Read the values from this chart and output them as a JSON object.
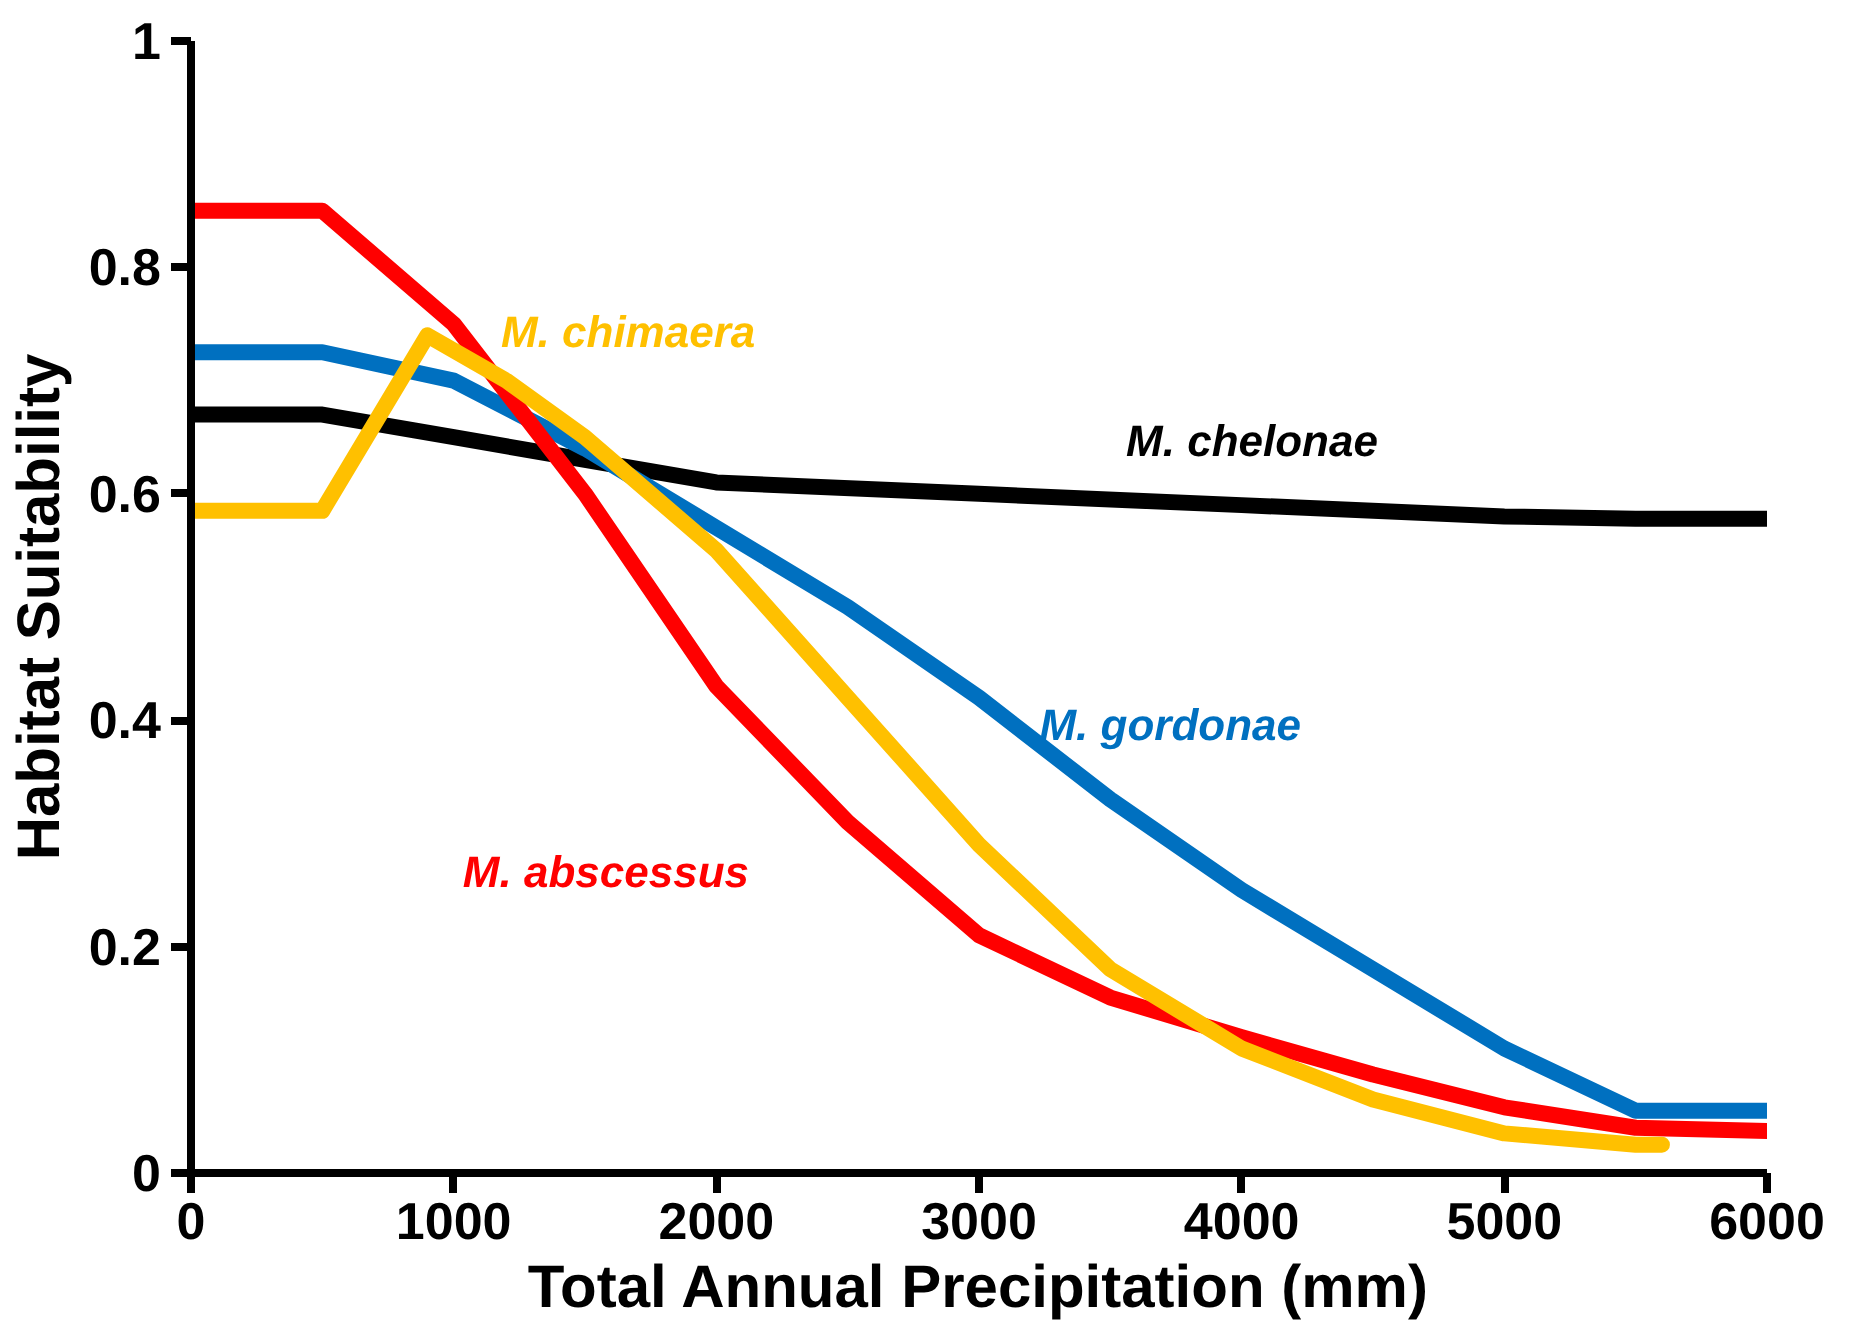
{
  "chart_data": {
    "type": "line",
    "xlabel": "Total Annual Precipitation (mm)",
    "ylabel": "Habitat Suitability",
    "xlim": [
      0,
      6000
    ],
    "ylim": [
      0,
      1
    ],
    "xticks": [
      0,
      1000,
      2000,
      3000,
      4000,
      5000,
      6000
    ],
    "yticks": [
      0,
      0.2,
      0.4,
      0.6,
      0.8,
      1
    ],
    "grid": false,
    "legend": false,
    "marker": "none",
    "line_style": "solid",
    "series": [
      {
        "name": "M. chelonae",
        "color": "#000000",
        "x": [
          0,
          500,
          1000,
          1500,
          2000,
          3000,
          4000,
          5000,
          5500,
          6000
        ],
        "values": [
          0.67,
          0.67,
          0.65,
          0.63,
          0.61,
          0.6,
          0.59,
          0.58,
          0.578,
          0.578
        ]
      },
      {
        "name": "M. gordonae",
        "color": "#0070c0",
        "x": [
          0,
          500,
          1000,
          1500,
          2000,
          2500,
          3000,
          3500,
          4000,
          4500,
          5000,
          5500,
          6000
        ],
        "values": [
          0.725,
          0.725,
          0.7,
          0.64,
          0.57,
          0.5,
          0.42,
          0.33,
          0.25,
          0.18,
          0.11,
          0.055,
          0.055
        ]
      },
      {
        "name": "M. abscessus",
        "color": "#ff0000",
        "x": [
          0,
          500,
          1000,
          1500,
          2000,
          2500,
          3000,
          3500,
          4000,
          4500,
          5000,
          5500,
          6000
        ],
        "values": [
          0.85,
          0.85,
          0.75,
          0.6,
          0.43,
          0.31,
          0.21,
          0.155,
          0.12,
          0.087,
          0.058,
          0.04,
          0.037
        ]
      },
      {
        "name": "M. chimaera",
        "color": "#ffc000",
        "x": [
          0,
          500,
          900,
          1200,
          1500,
          2000,
          2500,
          3000,
          3500,
          4000,
          4500,
          5000,
          5500,
          5600
        ],
        "values": [
          0.585,
          0.585,
          0.74,
          0.7,
          0.65,
          0.55,
          0.42,
          0.29,
          0.18,
          0.11,
          0.065,
          0.035,
          0.025,
          0.025
        ]
      }
    ]
  }
}
